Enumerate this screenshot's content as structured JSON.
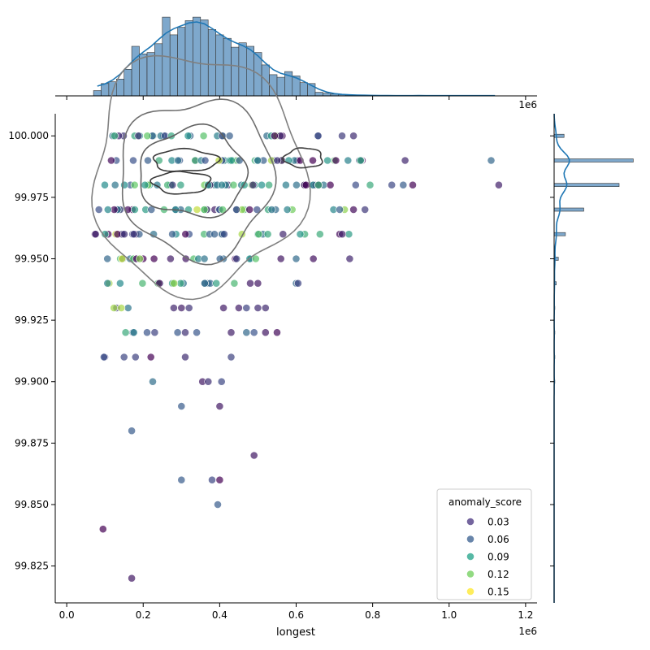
{
  "chart_data": {
    "type": "scatter",
    "title": "",
    "xlabel": "longest",
    "ylabel": "",
    "x_offset_label": "1e6",
    "xlim": [
      -0.03,
      1.23
    ],
    "ylim": [
      99.81,
      100.009
    ],
    "x_ticks": [
      0.0,
      0.2,
      0.4,
      0.6,
      0.8,
      1.0,
      1.2
    ],
    "x_tick_labels": [
      "0.0",
      "0.2",
      "0.4",
      "0.6",
      "0.8",
      "1.0",
      "1.2"
    ],
    "y_ticks": [
      99.825,
      99.85,
      99.875,
      99.9,
      99.925,
      99.95,
      99.975,
      100.0
    ],
    "y_tick_labels": [
      "99.825",
      "99.850",
      "99.875",
      "99.900",
      "99.925",
      "99.950",
      "99.975",
      "100.000"
    ],
    "grid": false,
    "legend": {
      "title": "anomaly_score",
      "placement": "lower-right",
      "entries": [
        {
          "label": "0.03",
          "color": "#46327e"
        },
        {
          "label": "0.06",
          "color": "#365c8d"
        },
        {
          "label": "0.09",
          "color": "#1fa187"
        },
        {
          "label": "0.12",
          "color": "#6ece58"
        },
        {
          "label": "0.15",
          "color": "#fde725"
        }
      ]
    },
    "colormap": [
      "#440154",
      "#3b528b",
      "#21918c",
      "#5ec962",
      "#fde725"
    ],
    "score_range": [
      0.02,
      0.16
    ],
    "rows": [
      {
        "y": 100.0,
        "xmin": 0.12,
        "xmax": 0.66,
        "n": 30,
        "extra": [
          0.72,
          0.75
        ]
      },
      {
        "y": 99.99,
        "xmin": 0.09,
        "xmax": 0.79,
        "n": 44,
        "extra": [
          0.885,
          1.11
        ]
      },
      {
        "y": 99.98,
        "xmin": 0.08,
        "xmax": 0.8,
        "n": 46,
        "extra": [
          0.85,
          0.88,
          0.905,
          1.13
        ]
      },
      {
        "y": 99.97,
        "xmin": 0.08,
        "xmax": 0.73,
        "n": 40,
        "extra": [
          0.75,
          0.78
        ]
      },
      {
        "y": 99.96,
        "xmin": 0.07,
        "xmax": 0.74,
        "n": 38,
        "extra": []
      },
      {
        "y": 99.95,
        "xmin": 0.09,
        "xmax": 0.5,
        "n": 26,
        "extra": [
          0.56,
          0.6,
          0.645,
          0.74
        ]
      },
      {
        "y": 99.94,
        "xmin": 0.1,
        "xmax": 0.44,
        "n": 18,
        "extra": [
          0.48,
          0.5,
          0.6,
          0.605
        ]
      },
      {
        "y": 99.93,
        "xmin": 0.12,
        "xmax": 0.17,
        "n": 4,
        "extra": [
          0.28,
          0.3,
          0.32,
          0.41,
          0.45,
          0.47,
          0.5,
          0.52
        ]
      },
      {
        "y": 99.92,
        "xmin": 0.15,
        "xmax": 0.18,
        "n": 3,
        "extra": [
          0.21,
          0.23,
          0.29,
          0.31,
          0.34,
          0.43,
          0.47,
          0.49,
          0.52,
          0.55
        ]
      },
      {
        "y": 99.91,
        "xmin": 0.095,
        "xmax": 0.11,
        "n": 2,
        "extra": [
          0.15,
          0.18,
          0.22,
          0.31,
          0.43
        ]
      }
    ],
    "points": [
      {
        "x": 0.225,
        "y": 99.9,
        "s": 0.07
      },
      {
        "x": 0.355,
        "y": 99.9,
        "s": 0.03
      },
      {
        "x": 0.37,
        "y": 99.9,
        "s": 0.04
      },
      {
        "x": 0.405,
        "y": 99.9,
        "s": 0.05
      },
      {
        "x": 0.3,
        "y": 99.89,
        "s": 0.06
      },
      {
        "x": 0.4,
        "y": 99.89,
        "s": 0.03
      },
      {
        "x": 0.17,
        "y": 99.88,
        "s": 0.06
      },
      {
        "x": 0.49,
        "y": 99.87,
        "s": 0.03
      },
      {
        "x": 0.3,
        "y": 99.86,
        "s": 0.06
      },
      {
        "x": 0.38,
        "y": 99.86,
        "s": 0.05
      },
      {
        "x": 0.4,
        "y": 99.86,
        "s": 0.02
      },
      {
        "x": 0.395,
        "y": 99.85,
        "s": 0.06
      },
      {
        "x": 0.095,
        "y": 99.84,
        "s": 0.02
      },
      {
        "x": 0.17,
        "y": 99.82,
        "s": 0.03
      }
    ],
    "kde_contours": [
      {
        "cx": 0.34,
        "cy": 99.985,
        "rx": 0.275,
        "ry": 0.048,
        "color": "#808080"
      },
      {
        "cx": 0.34,
        "cy": 99.983,
        "rx": 0.2,
        "ry": 0.032,
        "color": "#707070"
      },
      {
        "cx": 0.33,
        "cy": 99.985,
        "rx": 0.14,
        "ry": 0.018,
        "color": "#606060"
      },
      {
        "cx": 0.31,
        "cy": 99.99,
        "rx": 0.085,
        "ry": 0.0045,
        "color": "#3a3a3a"
      },
      {
        "cx": 0.3,
        "cy": 99.981,
        "rx": 0.075,
        "ry": 0.0045,
        "color": "#3a3a3a"
      },
      {
        "cx": 0.62,
        "cy": 99.991,
        "rx": 0.05,
        "ry": 0.004,
        "color": "#404040"
      }
    ],
    "marginal_x": {
      "bin_width": 0.02,
      "bin_start": 0.07,
      "counts": [
        12,
        28,
        32,
        38,
        60,
        112,
        95,
        98,
        118,
        178,
        138,
        155,
        170,
        178,
        172,
        150,
        138,
        130,
        110,
        120,
        112,
        98,
        70,
        48,
        42,
        55,
        45,
        30,
        28,
        8,
        6,
        4,
        3,
        2,
        2,
        1,
        1,
        1,
        1,
        0,
        0,
        1,
        1,
        1,
        0,
        0,
        1,
        1,
        0,
        0,
        1,
        1,
        0
      ],
      "max_count": 180
    },
    "marginal_y": {
      "values": [
        100.0,
        99.99,
        99.98,
        99.97,
        99.96,
        99.95,
        99.94,
        99.93,
        99.92,
        99.91,
        99.9
      ],
      "counts": [
        14,
        112,
        92,
        42,
        16,
        6,
        3,
        1,
        1,
        1,
        1
      ],
      "max_count": 115
    }
  }
}
